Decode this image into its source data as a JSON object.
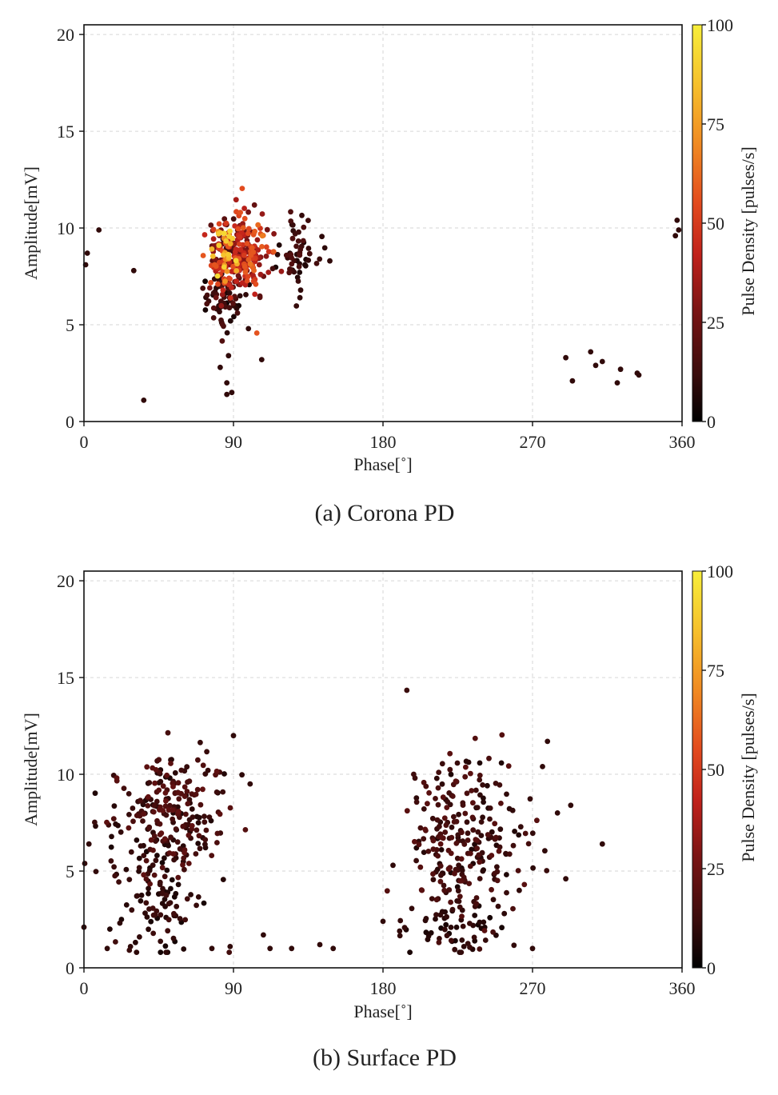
{
  "chart_data": [
    {
      "type": "scatter",
      "caption": "(a) Corona PD",
      "xlabel": "Phase[˚]",
      "ylabel": "Amplitude[mV]",
      "xlim": [
        0,
        360
      ],
      "ylim": [
        0,
        20.5
      ],
      "xticks": [
        0,
        90,
        180,
        270,
        360
      ],
      "yticks": [
        0,
        5,
        10,
        15,
        20
      ],
      "grid": true,
      "colorbar": {
        "label": "Pulse Density [pulses/s]",
        "range": [
          0,
          100
        ],
        "ticks": [
          0,
          25,
          50,
          75,
          100
        ]
      },
      "clusters": [
        {
          "center": [
            92,
            8.6
          ],
          "spread": [
            9,
            1.1
          ],
          "count": 260,
          "density": [
            14,
            60
          ]
        },
        {
          "center": [
            84,
            8.8
          ],
          "spread": [
            3,
            0.9
          ],
          "count": 28,
          "density": [
            70,
            95
          ]
        },
        {
          "center": [
            103,
            8.8
          ],
          "spread": [
            3,
            0.7
          ],
          "count": 16,
          "density": [
            45,
            70
          ]
        },
        {
          "center": [
            82,
            6.3
          ],
          "spread": [
            6,
            0.8
          ],
          "count": 70,
          "density": [
            3,
            20
          ]
        },
        {
          "center": [
            130,
            8.8
          ],
          "spread": [
            6,
            0.9
          ],
          "count": 55,
          "density": [
            5,
            18
          ]
        }
      ],
      "points": [
        [
          1,
          8.1,
          10
        ],
        [
          2,
          8.7,
          10
        ],
        [
          9,
          9.9,
          10
        ],
        [
          30,
          7.8,
          10
        ],
        [
          36,
          1.1,
          10
        ],
        [
          86,
          1.4,
          10
        ],
        [
          89,
          1.5,
          10
        ],
        [
          86,
          2.0,
          10
        ],
        [
          82,
          2.8,
          10
        ],
        [
          87,
          3.4,
          10
        ],
        [
          107,
          3.2,
          10
        ],
        [
          99,
          4.8,
          10
        ],
        [
          148,
          8.3,
          10
        ],
        [
          130,
          6.4,
          10
        ],
        [
          290,
          3.3,
          10
        ],
        [
          294,
          2.1,
          10
        ],
        [
          305,
          3.6,
          10
        ],
        [
          308,
          2.9,
          10
        ],
        [
          312,
          3.1,
          10
        ],
        [
          321,
          2.0,
          10
        ],
        [
          323,
          2.7,
          10
        ],
        [
          333,
          2.5,
          10
        ],
        [
          334,
          2.4,
          10
        ],
        [
          356,
          9.6,
          10
        ],
        [
          357,
          10.4,
          10
        ],
        [
          358,
          9.9,
          10
        ]
      ]
    },
    {
      "type": "scatter",
      "caption": "(b) Surface PD",
      "xlabel": "Phase[˚]",
      "ylabel": "Amplitude[mV]",
      "xlim": [
        0,
        360
      ],
      "ylim": [
        0,
        20.5
      ],
      "xticks": [
        0,
        90,
        180,
        270,
        360
      ],
      "yticks": [
        0,
        5,
        10,
        15,
        20
      ],
      "grid": true,
      "colorbar": {
        "label": "Pulse Density [pulses/s]",
        "range": [
          0,
          100
        ],
        "ticks": [
          0,
          25,
          50,
          75,
          100
        ]
      },
      "clusters": [
        {
          "center": [
            50,
            7.8
          ],
          "spread": [
            18,
            1.6
          ],
          "count": 240,
          "density": [
            6,
            22
          ]
        },
        {
          "center": [
            45,
            3.5
          ],
          "spread": [
            15,
            1.4
          ],
          "count": 90,
          "density": [
            4,
            14
          ]
        },
        {
          "center": [
            228,
            6.5
          ],
          "spread": [
            17,
            2.2
          ],
          "count": 260,
          "density": [
            6,
            20
          ]
        },
        {
          "center": [
            225,
            2.0
          ],
          "spread": [
            16,
            0.7
          ],
          "count": 50,
          "density": [
            4,
            12
          ]
        }
      ],
      "points": [
        [
          0,
          2.1,
          10
        ],
        [
          3,
          6.4,
          10
        ],
        [
          14,
          1.0,
          10
        ],
        [
          28,
          1.1,
          10
        ],
        [
          77,
          1.0,
          10
        ],
        [
          88,
          1.1,
          10
        ],
        [
          90,
          12.0,
          10
        ],
        [
          100,
          9.5,
          10
        ],
        [
          108,
          1.7,
          10
        ],
        [
          112,
          1.0,
          10
        ],
        [
          125,
          1.0,
          10
        ],
        [
          142,
          1.2,
          10
        ],
        [
          150,
          1.0,
          10
        ],
        [
          180,
          2.4,
          10
        ],
        [
          186,
          5.3,
          10
        ],
        [
          190,
          1.9,
          10
        ],
        [
          262,
          4.0,
          10
        ],
        [
          270,
          1.0,
          10
        ],
        [
          276,
          10.4,
          10
        ],
        [
          279,
          11.7,
          10
        ],
        [
          285,
          8.0,
          10
        ],
        [
          290,
          4.6,
          10
        ],
        [
          293,
          8.4,
          10
        ],
        [
          312,
          6.4,
          10
        ]
      ]
    }
  ]
}
